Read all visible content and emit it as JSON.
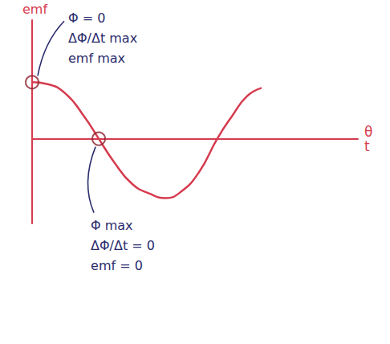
{
  "chart_data": {
    "type": "line",
    "ylabel": "emf",
    "xlabel": [
      "θ",
      "t"
    ],
    "x": [
      0,
      20,
      45,
      70,
      90,
      110,
      135,
      160,
      180,
      200,
      225,
      250,
      270,
      290,
      310
    ],
    "values": [
      1,
      0.97,
      0.8,
      0.4,
      0,
      -0.4,
      -0.8,
      -0.98,
      -1.05,
      -0.95,
      -0.6,
      0,
      0.4,
      0.75,
      0.9
    ],
    "color": "#d63b4f",
    "xlim": [
      0,
      440
    ],
    "ylim": [
      -1.5,
      2.1
    ],
    "tick_labels": false,
    "grid": false,
    "annotations": [
      {
        "x": 0,
        "y": 1,
        "lines": [
          "Φ = 0",
          "ΔΦ/Δt max",
          "emf max"
        ]
      },
      {
        "x": 90,
        "y": 0,
        "lines": [
          "Φ max",
          "ΔΦ/Δt = 0",
          "emf = 0"
        ]
      }
    ]
  }
}
